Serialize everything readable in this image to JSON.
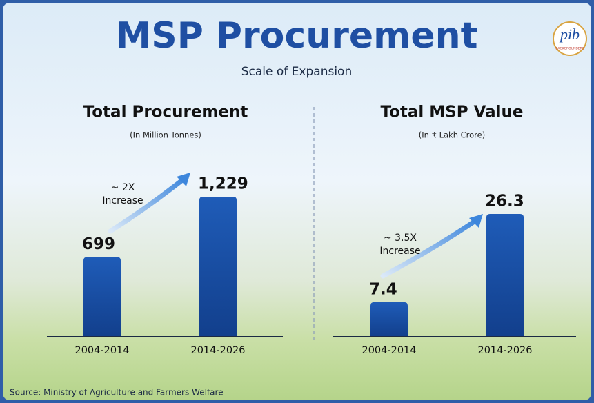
{
  "title": "MSP Procurement",
  "subtitle": "Scale of Expansion",
  "source": "Source: Ministry of Agriculture and Farmers Welfare",
  "logo": {
    "text": "pib",
    "tagline": "BACKGROUNDERS"
  },
  "chart_data": [
    {
      "type": "bar",
      "title": "Total Procurement",
      "subtitle": "(In Million Tonnes)",
      "categories": [
        "2004-2014",
        "2014-2026"
      ],
      "values": [
        699,
        1229
      ],
      "value_labels": [
        "699",
        "1,229"
      ],
      "annotation": [
        "~ 2X",
        "Increase"
      ],
      "color": "#1a4fa0"
    },
    {
      "type": "bar",
      "title": "Total MSP Value",
      "subtitle": "(In ₹ Lakh Crore)",
      "categories": [
        "2004-2014",
        "2014-2026"
      ],
      "values": [
        7.4,
        26.3
      ],
      "value_labels": [
        "7.4",
        "26.3"
      ],
      "annotation": [
        "~ 3.5X",
        "Increase"
      ],
      "color": "#1a4fa0"
    }
  ]
}
